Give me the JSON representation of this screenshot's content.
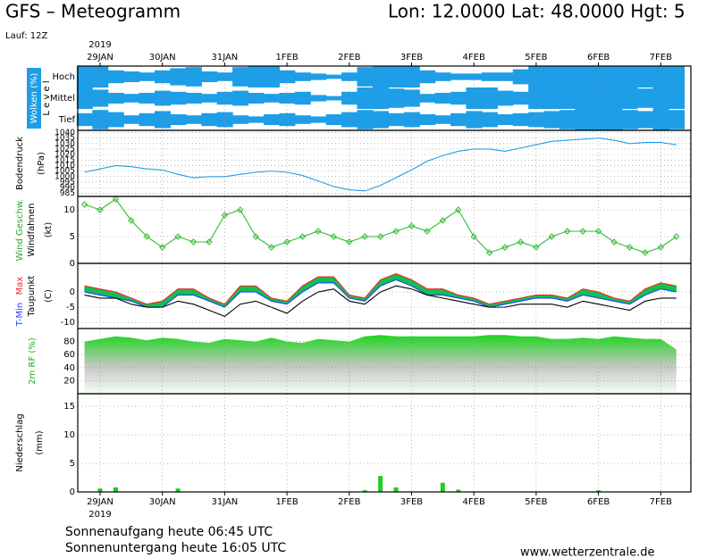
{
  "header": {
    "title": "GFS – Meteogramm",
    "location": "Lon: 12.0000 Lat: 48.0000 Hgt: 5",
    "run": "Lauf: 12Z",
    "year": "2019"
  },
  "footer": {
    "year": "2019",
    "sunrise": "Sonnenaufgang heute 06:45 UTC",
    "sunset": "Sonnenuntergang heute 16:05 UTC",
    "site": "www.wetterzentrale.de"
  },
  "chart_data": [
    {
      "type": "clouds",
      "ylabel": [
        "Wolken (%)",
        "L e v e l"
      ],
      "color": "#1e9ee6",
      "x": [
        -6,
        0,
        6,
        12,
        18,
        24,
        30,
        36,
        42,
        48,
        54,
        60,
        66,
        72,
        78,
        84,
        90,
        96,
        102,
        108,
        114,
        120,
        126,
        132,
        138,
        144,
        150,
        156,
        162,
        168,
        174,
        180,
        186,
        192,
        198,
        204,
        210,
        216,
        222
      ],
      "xlim": [
        -8.6,
        227.6
      ],
      "grid": true,
      "xticks": [
        {
          "value": 0,
          "label": "29JAN"
        },
        {
          "value": 24,
          "label": "30JAN"
        },
        {
          "value": 48,
          "label": "31JAN"
        },
        {
          "value": 72,
          "label": "1FEB"
        },
        {
          "value": 96,
          "label": "2FEB"
        },
        {
          "value": 120,
          "label": "3FEB"
        },
        {
          "value": 144,
          "label": "4FEB"
        },
        {
          "value": 168,
          "label": "5FEB"
        },
        {
          "value": 192,
          "label": "6FEB"
        },
        {
          "value": 216,
          "label": "7FEB"
        }
      ],
      "series": [
        {
          "name": "Hoch",
          "values": [
            100,
            100,
            60,
            50,
            40,
            60,
            80,
            90,
            50,
            40,
            90,
            100,
            100,
            60,
            40,
            30,
            20,
            40,
            90,
            100,
            100,
            100,
            60,
            40,
            30,
            30,
            40,
            40,
            70,
            100,
            100,
            100,
            100,
            100,
            100,
            100,
            100,
            100,
            100
          ]
        },
        {
          "name": "Mittel",
          "values": [
            100,
            80,
            50,
            40,
            50,
            70,
            60,
            50,
            40,
            60,
            70,
            50,
            40,
            50,
            60,
            30,
            20,
            60,
            100,
            100,
            90,
            80,
            40,
            50,
            60,
            100,
            100,
            70,
            60,
            100,
            100,
            100,
            100,
            100,
            100,
            100,
            90,
            100,
            100
          ]
        },
        {
          "name": "Tief",
          "values": [
            60,
            90,
            70,
            40,
            60,
            80,
            50,
            40,
            60,
            70,
            40,
            30,
            50,
            60,
            40,
            30,
            50,
            70,
            90,
            80,
            60,
            70,
            50,
            40,
            60,
            80,
            70,
            50,
            60,
            70,
            80,
            90,
            100,
            100,
            100,
            90,
            80,
            100,
            90
          ]
        }
      ]
    },
    {
      "type": "line",
      "ylabel": [
        "Bodendruck",
        "(hPa)"
      ],
      "grid": true,
      "x": [
        -6,
        0,
        6,
        12,
        18,
        24,
        30,
        36,
        42,
        48,
        54,
        60,
        66,
        72,
        78,
        84,
        90,
        96,
        102,
        108,
        114,
        120,
        126,
        132,
        138,
        144,
        150,
        156,
        162,
        168,
        174,
        180,
        186,
        192,
        198,
        204,
        210,
        216,
        222
      ],
      "xlim": [
        -8.6,
        227.6
      ],
      "ylim": [
        982,
        1042
      ],
      "yticks": [
        985,
        990,
        995,
        1000,
        1005,
        1010,
        1015,
        1020,
        1025,
        1030,
        1035,
        1040
      ],
      "series": [
        {
          "color": "#1e9ee6",
          "values": [
            1004,
            1007,
            1010,
            1009,
            1007,
            1006,
            1002,
            999,
            1000,
            1000,
            1002,
            1004,
            1005,
            1004,
            1001,
            996,
            991,
            988,
            987,
            992,
            999,
            1006,
            1014,
            1019,
            1023,
            1025,
            1025,
            1023,
            1026,
            1029,
            1032,
            1033,
            1034,
            1035,
            1033,
            1030,
            1031,
            1031,
            1029
          ]
        }
      ]
    },
    {
      "type": "line",
      "ylabel": [
        "Wind Geschw.",
        "Windfahnen",
        "(kt)"
      ],
      "grid": true,
      "markers": true,
      "x": [
        -6,
        0,
        6,
        12,
        18,
        24,
        30,
        36,
        42,
        48,
        54,
        60,
        66,
        72,
        78,
        84,
        90,
        96,
        102,
        108,
        114,
        120,
        126,
        132,
        138,
        144,
        150,
        156,
        162,
        168,
        174,
        180,
        186,
        192,
        198,
        204,
        210,
        216,
        222
      ],
      "xlim": [
        -8.6,
        227.6
      ],
      "ylim": [
        0,
        12.5
      ],
      "yticks": [
        0,
        5,
        10
      ],
      "series": [
        {
          "color": "#33bb33",
          "values": [
            11,
            10,
            12,
            8,
            5,
            3,
            5,
            4,
            4,
            9,
            10,
            5,
            3,
            4,
            5,
            6,
            5,
            4,
            5,
            5,
            6,
            7,
            6,
            8,
            10,
            5,
            2,
            3,
            4,
            3,
            5,
            6,
            6,
            6,
            4,
            3,
            2,
            3,
            5
          ]
        }
      ]
    },
    {
      "type": "line",
      "ylabel": [
        "(C)"
      ],
      "grid": true,
      "fill_between": "#10c050",
      "x": [
        -6,
        0,
        6,
        12,
        18,
        24,
        30,
        36,
        42,
        48,
        54,
        60,
        66,
        72,
        78,
        84,
        90,
        96,
        102,
        108,
        114,
        120,
        126,
        132,
        138,
        144,
        150,
        156,
        162,
        168,
        174,
        180,
        186,
        192,
        198,
        204,
        210,
        216,
        222
      ],
      "xlim": [
        -8.6,
        227.6
      ],
      "ylim": [
        -12,
        9.4
      ],
      "yticks": [
        -10,
        -5,
        0
      ],
      "series": [
        {
          "name": "T-Min",
          "color": "#2040ff",
          "values": [
            0,
            -1,
            -2,
            -3,
            -5,
            -5,
            -1,
            -1,
            -3,
            -5,
            0,
            0,
            -3,
            -4,
            0,
            3,
            3,
            -2,
            -3,
            2,
            4,
            2,
            -1,
            -1,
            -2,
            -3,
            -5,
            -4,
            -3,
            -2,
            -2,
            -3,
            -1,
            -2,
            -3,
            -4,
            -1,
            1,
            0
          ]
        },
        {
          "name": "Max",
          "color": "#ff2020",
          "values": [
            2,
            1,
            0,
            -2,
            -4,
            -3,
            1,
            1,
            -2,
            -4,
            2,
            2,
            -2,
            -3,
            2,
            5,
            5,
            -1,
            -2,
            4,
            6,
            4,
            1,
            1,
            -1,
            -2,
            -4,
            -3,
            -2,
            -1,
            -1,
            -2,
            1,
            0,
            -2,
            -3,
            1,
            3,
            2
          ]
        },
        {
          "name": "Taupunkt",
          "color": "#000000",
          "values": [
            -1,
            -2,
            -2,
            -4,
            -5,
            -5,
            -3,
            -4,
            -6,
            -8,
            -4,
            -3,
            -5,
            -7,
            -3,
            0,
            1,
            -3,
            -4,
            0,
            2,
            1,
            -1,
            -2,
            -3,
            -4,
            -5,
            -5,
            -4,
            -4,
            -4,
            -5,
            -3,
            -4,
            -5,
            -6,
            -3,
            -2,
            -2
          ]
        }
      ]
    },
    {
      "type": "area",
      "ylabel": [
        "2m RF (%)"
      ],
      "grid": true,
      "color": "#22d422",
      "x": [
        -6,
        0,
        6,
        12,
        18,
        24,
        30,
        36,
        42,
        48,
        54,
        60,
        66,
        72,
        78,
        84,
        90,
        96,
        102,
        108,
        114,
        120,
        126,
        132,
        138,
        144,
        150,
        156,
        162,
        168,
        174,
        180,
        186,
        192,
        198,
        204,
        210,
        216,
        222
      ],
      "xlim": [
        -8.6,
        227.6
      ],
      "ylim": [
        0,
        100
      ],
      "yticks": [
        20,
        40,
        60,
        80
      ],
      "values": [
        80,
        84,
        88,
        86,
        82,
        86,
        84,
        80,
        78,
        84,
        82,
        80,
        86,
        80,
        78,
        84,
        82,
        80,
        88,
        90,
        88,
        88,
        88,
        88,
        88,
        88,
        90,
        90,
        88,
        88,
        84,
        84,
        86,
        84,
        88,
        86,
        84,
        84,
        68
      ]
    },
    {
      "type": "bar",
      "ylabel": [
        "Niederschlag",
        "(mm)"
      ],
      "grid": true,
      "color": "#22cc22",
      "x": [
        -6,
        0,
        6,
        12,
        18,
        24,
        30,
        36,
        42,
        48,
        54,
        60,
        66,
        72,
        78,
        84,
        90,
        96,
        102,
        108,
        114,
        120,
        126,
        132,
        138,
        144,
        150,
        156,
        162,
        168,
        174,
        180,
        186,
        192,
        198,
        204,
        210,
        216,
        222
      ],
      "xlim": [
        -8.6,
        227.6
      ],
      "ylim": [
        0,
        17.2
      ],
      "yticks": [
        0,
        5,
        10,
        15
      ],
      "xticks": [
        {
          "value": 0,
          "label": "29JAN"
        },
        {
          "value": 24,
          "label": "30JAN"
        },
        {
          "value": 48,
          "label": "31JAN"
        },
        {
          "value": 72,
          "label": "1FEB"
        },
        {
          "value": 96,
          "label": "2FEB"
        },
        {
          "value": 120,
          "label": "3FEB"
        },
        {
          "value": 144,
          "label": "4FEB"
        },
        {
          "value": 168,
          "label": "5FEB"
        },
        {
          "value": 192,
          "label": "6FEB"
        },
        {
          "value": 216,
          "label": "7FEB"
        }
      ],
      "values": [
        0,
        0.6,
        0.8,
        0,
        0,
        0,
        0.6,
        0,
        0,
        0,
        0,
        0,
        0,
        0,
        0,
        0,
        0,
        0,
        0.3,
        2.8,
        0.8,
        0,
        0,
        1.6,
        0.4,
        0,
        0,
        0,
        0,
        0,
        0,
        0,
        0,
        0.3,
        0,
        0,
        0,
        0,
        0
      ]
    }
  ]
}
